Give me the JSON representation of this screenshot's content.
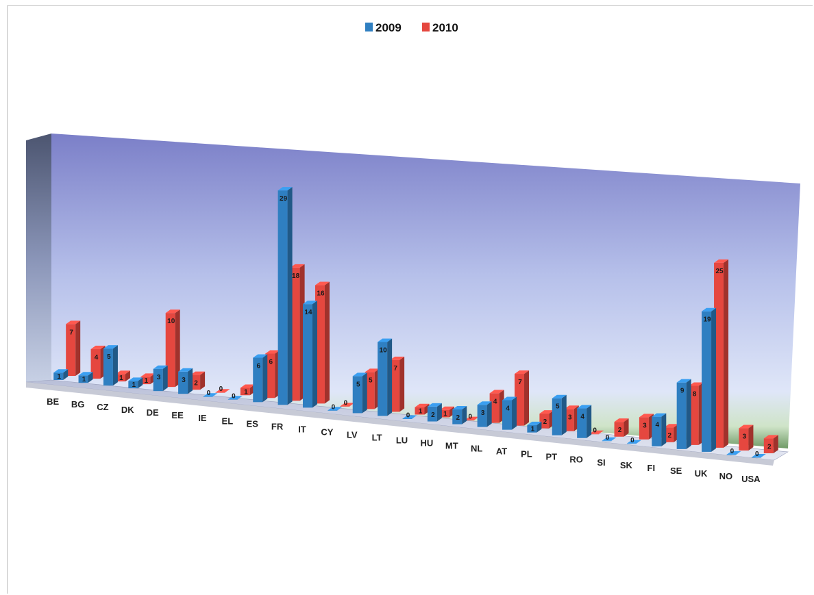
{
  "chart_data": {
    "type": "bar",
    "categories": [
      "BE",
      "BG",
      "CZ",
      "DK",
      "DE",
      "EE",
      "IE",
      "EL",
      "ES",
      "FR",
      "IT",
      "CY",
      "LV",
      "LT",
      "LU",
      "HU",
      "MT",
      "NL",
      "AT",
      "PL",
      "PT",
      "RO",
      "SI",
      "SK",
      "FI",
      "SE",
      "UK",
      "NO",
      "USA"
    ],
    "series": [
      {
        "name": "2009",
        "values": [
          1,
          1,
          5,
          1,
          3,
          3,
          0,
          0,
          6,
          29,
          14,
          0,
          5,
          10,
          0,
          2,
          2,
          3,
          4,
          1,
          5,
          4,
          0,
          0,
          4,
          9,
          19,
          0,
          0
        ]
      },
      {
        "name": "2010",
        "values": [
          7,
          4,
          1,
          1,
          10,
          2,
          0,
          1,
          6,
          18,
          16,
          0,
          5,
          7,
          1,
          1,
          0,
          4,
          7,
          2,
          3,
          0,
          2,
          3,
          2,
          8,
          25,
          3,
          2
        ]
      }
    ],
    "legend_position": "top-center",
    "colors": {
      "2009": "#2f7fc1",
      "2010": "#e5473f"
    },
    "grid": false,
    "three_d": true
  }
}
